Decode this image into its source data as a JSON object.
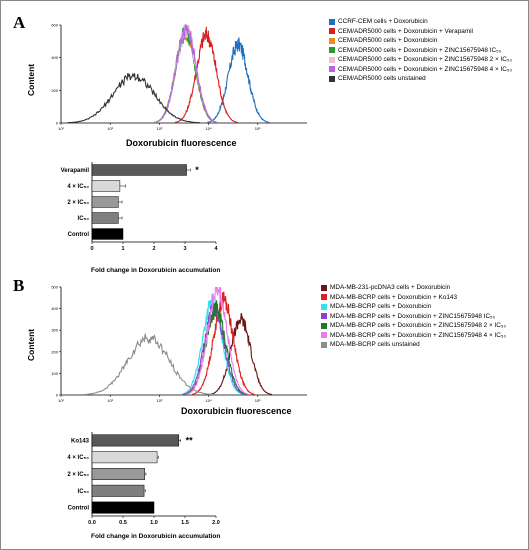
{
  "figure": {
    "panel_a_label": "A",
    "panel_b_label": "B"
  },
  "chart_data": [
    {
      "type": "line",
      "panel": "A",
      "subtype": "flow cytometry histogram",
      "xlabel": "Doxorubicin fluorescence",
      "ylabel": "Content",
      "x_scale": "log",
      "xlim": [
        10,
        1000000
      ],
      "ylim": [
        0,
        600
      ],
      "x_ticks": [
        "10¹",
        "10²",
        "10³",
        "10⁴",
        "10⁵"
      ],
      "y_ticks": [
        "0",
        "200",
        "400",
        "600"
      ],
      "legend_position": "top-right",
      "series": [
        {
          "name": "CCRF-CEM cells + Doxorubicin",
          "color": "#1f6fc0",
          "peak_x": 40000,
          "peak_y": 480
        },
        {
          "name": "CEM/ADR5000 cells + Doxorubicin + Verapamil",
          "color": "#d81e1e",
          "peak_x": 9000,
          "peak_y": 540
        },
        {
          "name": "CEM/ADR5000 cells + Doxorubicin",
          "color": "#f28a1d",
          "peak_x": 3400,
          "peak_y": 560
        },
        {
          "name": "CEM/ADR5000 cells + Doxorubicin + ZINC15675948 IC₅₀",
          "color": "#2e9a2e",
          "peak_x": 3400,
          "peak_y": 555
        },
        {
          "name": "CEM/ADR5000 cells + Doxorubicin + ZINC15675948 2 × IC₅₀",
          "color": "#f0c2cf",
          "peak_x": 3500,
          "peak_y": 575
        },
        {
          "name": "CEM/ADR5000 cells + Doxorubicin + ZINC15675948 4 × IC₅₀",
          "color": "#b565e6",
          "peak_x": 3500,
          "peak_y": 580
        },
        {
          "name": "CEM/ADR5000 cells unstained",
          "color": "#333333",
          "peak_x": 300,
          "peak_y": 290
        }
      ]
    },
    {
      "type": "bar",
      "panel": "A",
      "orientation": "horizontal",
      "xlabel": "Fold change in Doxorubicin accumulation",
      "xlim": [
        0,
        4
      ],
      "x_ticks": [
        "0",
        "1",
        "2",
        "3",
        "4"
      ],
      "categories": [
        "Verapamil",
        "4 × IC₅₀",
        "2 × IC₅₀",
        "IC₅₀",
        "Control"
      ],
      "values": [
        3.05,
        0.9,
        0.85,
        0.85,
        1.0
      ],
      "errors": [
        0.12,
        0.18,
        0.12,
        0.12,
        0.0
      ],
      "colors": [
        "#595959",
        "#d9d9d9",
        "#999999",
        "#7f7f7f",
        "#000000"
      ],
      "annotations": [
        {
          "category": "Verapamil",
          "text": "*"
        }
      ]
    },
    {
      "type": "line",
      "panel": "B",
      "subtype": "flow cytometry histogram",
      "xlabel": "Doxorubicin fluorescence",
      "ylabel": "Content",
      "x_scale": "log",
      "xlim": [
        10,
        1000000
      ],
      "ylim": [
        0,
        500
      ],
      "x_ticks": [
        "10¹",
        "10²",
        "10³",
        "10⁴",
        "10⁵"
      ],
      "y_ticks": [
        "0",
        "100",
        "200",
        "300",
        "400",
        "500"
      ],
      "legend_position": "top-right",
      "series": [
        {
          "name": "MDA-MB-231-pcDNA3 cells + Doxorubicin",
          "color": "#6b1616",
          "peak_x": 45000,
          "peak_y": 350
        },
        {
          "name": "MDA-MB-BCRP cells + Doxorubicin + Ko143",
          "color": "#e02020",
          "peak_x": 20000,
          "peak_y": 440
        },
        {
          "name": "MDA-MB-BCRP cells + Doxorubicin",
          "color": "#33e0f0",
          "peak_x": 12000,
          "peak_y": 430
        },
        {
          "name": "MDA-MB-BCRP cells + Doxorubicin + ZINC15675948 IC₅₀",
          "color": "#8a3fd6",
          "peak_x": 13000,
          "peak_y": 400
        },
        {
          "name": "MDA-MB-BCRP cells + Doxorubicin + ZINC15675948 2 × IC₅₀",
          "color": "#1e7a2e",
          "peak_x": 14000,
          "peak_y": 400
        },
        {
          "name": "MDA-MB-BCRP cells + Doxorubicin + ZINC15675948 4 × IC₅₀",
          "color": "#f07ae8",
          "peak_x": 15000,
          "peak_y": 480
        },
        {
          "name": "MDA-MB-BCRP cells unstained",
          "color": "#8c8c8c",
          "peak_x": 600,
          "peak_y": 265
        }
      ]
    },
    {
      "type": "bar",
      "panel": "B",
      "orientation": "horizontal",
      "xlabel": "Fold change in Doxorubicin accumulation",
      "xlim": [
        0,
        2
      ],
      "x_ticks": [
        "0.0",
        "0.5",
        "1.0",
        "1.5",
        "2.0"
      ],
      "categories": [
        "Ko143",
        "4 × IC₅₀",
        "2 × IC₅₀",
        "IC₅₀",
        "Control"
      ],
      "values": [
        1.4,
        1.05,
        0.85,
        0.84,
        1.0
      ],
      "errors": [
        0.03,
        0.02,
        0.02,
        0.02,
        0.0
      ],
      "colors": [
        "#595959",
        "#d9d9d9",
        "#999999",
        "#7f7f7f",
        "#000000"
      ],
      "annotations": [
        {
          "category": "Ko143",
          "text": "**"
        }
      ]
    }
  ]
}
